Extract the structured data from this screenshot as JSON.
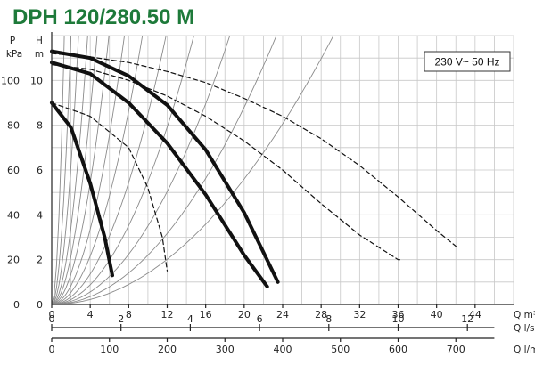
{
  "title": "DPH 120/280.50 M",
  "supply_label": "230 V~ 50 Hz",
  "chart_data": {
    "type": "line",
    "title": "DPH 120/280.50 M",
    "y_axis": {
      "label": "H",
      "unit": "m",
      "ylim": [
        0,
        12
      ],
      "ticks": [
        0,
        2,
        4,
        6,
        8,
        10
      ]
    },
    "y2_axis": {
      "label": "P",
      "unit": "kPa",
      "ylim": [
        0,
        120
      ],
      "ticks": [
        0,
        20,
        40,
        60,
        80,
        100
      ]
    },
    "x_axis": {
      "label": "Q m³/h",
      "xlim": [
        0,
        48
      ],
      "ticks": [
        0,
        4,
        8,
        12,
        16,
        20,
        24,
        28,
        32,
        36,
        40,
        44
      ]
    },
    "x_axis_2": {
      "label": "Q l/s",
      "ticks": [
        0,
        2,
        4,
        6,
        8,
        10,
        12
      ]
    },
    "x_axis_3": {
      "label": "Q l/min",
      "ticks": [
        0,
        100,
        200,
        300,
        400,
        500,
        600,
        700
      ]
    },
    "grid": true,
    "series": [
      {
        "style": "solid",
        "x": [
          0,
          4,
          8,
          12,
          16,
          20,
          23.5
        ],
        "y": [
          11.3,
          11.0,
          10.2,
          8.9,
          6.9,
          4.1,
          1.0
        ]
      },
      {
        "style": "solid",
        "x": [
          0,
          4,
          8,
          12,
          16,
          20,
          22.4
        ],
        "y": [
          10.8,
          10.3,
          9.0,
          7.2,
          4.9,
          2.2,
          0.8
        ]
      },
      {
        "style": "solid",
        "x": [
          0,
          2,
          4,
          5.5,
          6.3
        ],
        "y": [
          9.0,
          7.9,
          5.4,
          3.0,
          1.3
        ]
      },
      {
        "style": "dashed",
        "x": [
          0,
          4,
          8,
          12,
          16,
          20,
          24,
          28,
          32,
          36,
          40,
          42
        ],
        "y": [
          11.2,
          11.05,
          10.8,
          10.4,
          9.9,
          9.2,
          8.4,
          7.4,
          6.2,
          4.8,
          3.3,
          2.6
        ]
      },
      {
        "style": "dashed",
        "x": [
          0,
          4,
          8,
          12,
          16,
          20,
          24,
          28,
          32,
          36,
          36.3
        ],
        "y": [
          10.7,
          10.5,
          10.0,
          9.3,
          8.4,
          7.3,
          6.0,
          4.5,
          3.1,
          2.0,
          2.0
        ]
      },
      {
        "style": "dashed",
        "x": [
          0,
          4,
          8,
          10,
          11.5,
          12
        ],
        "y": [
          9.0,
          8.4,
          7.0,
          5.2,
          3.0,
          1.5
        ]
      }
    ],
    "system_curves_k": [
      7.0,
      3.0,
      1.55,
      0.86,
      0.54,
      0.34,
      0.21,
      0.135,
      0.085,
      0.055,
      0.035,
      0.022,
      0.014
    ]
  }
}
